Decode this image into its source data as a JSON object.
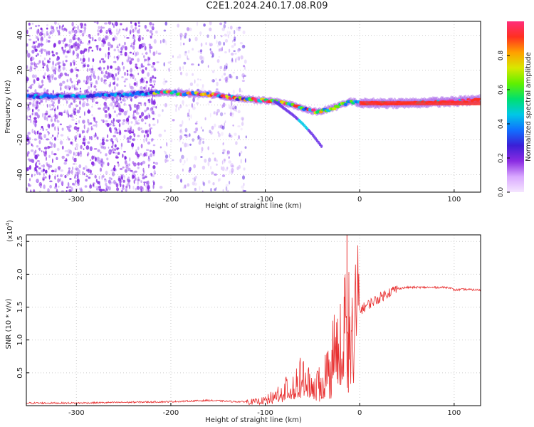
{
  "figure": {
    "title": "C2E1.2024.240.17.08.R09"
  },
  "chart_data": [
    {
      "type": "heatmap",
      "title": "",
      "xlabel": "Height of straight line (km)",
      "ylabel": "Frequency (Hz)",
      "xlim": [
        -353,
        128
      ],
      "ylim": [
        -50,
        48
      ],
      "xticks": [
        -300,
        -200,
        -100,
        0,
        100
      ],
      "yticks": [
        -40,
        -20,
        0,
        20,
        40
      ],
      "grid": true,
      "colorbar": {
        "label": "Normalized spectral amplitude",
        "range": [
          0,
          1
        ],
        "ticks": [
          0.0,
          0.2,
          0.4,
          0.6,
          0.8
        ],
        "colors": [
          "#f5e6ff",
          "#d9a8ff",
          "#8a2be2",
          "#3b1fd6",
          "#1070ff",
          "#00c8e6",
          "#00e070",
          "#60f000",
          "#d8e800",
          "#ffa000",
          "#ff3020",
          "#ff2d7a"
        ]
      },
      "ridge": {
        "note_units": "x in km, frequency in Hz",
        "x": [
          -353,
          -300,
          -250,
          -220,
          -200,
          -160,
          -130,
          -110,
          -90,
          -70,
          -55,
          -45,
          -30,
          -20,
          -10,
          0,
          50,
          100,
          128
        ],
        "y": [
          5,
          5,
          6,
          7,
          7,
          6,
          4,
          3,
          2,
          0,
          -3,
          -4,
          -2,
          0,
          2,
          1,
          1,
          2,
          3
        ]
      },
      "branch": {
        "x": [
          -90,
          -80,
          -70,
          -60,
          -50,
          -40
        ],
        "y": [
          2,
          -2,
          -6,
          -11,
          -17,
          -24
        ]
      },
      "noise_regions": [
        {
          "x": [
            -353,
            -215
          ],
          "density": "high"
        },
        {
          "x": [
            -215,
            -190
          ],
          "density": "low"
        },
        {
          "x": [
            -190,
            -150
          ],
          "density": "medium"
        },
        {
          "x": [
            -150,
            -120
          ],
          "density": "medium"
        }
      ]
    },
    {
      "type": "line",
      "title": "",
      "xlabel": "Height of straight line (km)",
      "ylabel": "SNR (10 * v/v)",
      "exponent_label": "(x10",
      "exponent_power": "4",
      "exponent_close": ")",
      "xlim": [
        -353,
        128
      ],
      "ylim": [
        0,
        2.6
      ],
      "xticks": [
        -300,
        -200,
        -100,
        0,
        100
      ],
      "yticks": [
        0.5,
        1.0,
        1.5,
        2.0,
        2.5
      ],
      "ytick_labels": [
        "0.5",
        "1.0",
        "1.5",
        "2.0",
        "2.5"
      ],
      "grid": true,
      "series": [
        {
          "color": "#e83030",
          "x": [
            -353,
            -300,
            -250,
            -200,
            -160,
            -130,
            -110,
            -100,
            -90,
            -80,
            -70,
            -60,
            -50,
            -40,
            -30,
            -25,
            -20,
            -15,
            -10,
            -5,
            0,
            10,
            20,
            30,
            40,
            50,
            60,
            80,
            95,
            100,
            110,
            128
          ],
          "y": [
            0.04,
            0.04,
            0.05,
            0.06,
            0.08,
            0.06,
            0.06,
            0.08,
            0.15,
            0.25,
            0.35,
            0.45,
            0.3,
            0.35,
            0.7,
            0.95,
            1.05,
            1.2,
            1.2,
            1.35,
            1.45,
            1.55,
            1.63,
            1.72,
            1.78,
            1.8,
            1.8,
            1.8,
            1.8,
            1.76,
            1.77,
            1.76
          ]
        }
      ],
      "spikes": [
        {
          "x": -13.5,
          "y": 2.6
        },
        {
          "x": -16,
          "y": 1.95
        },
        {
          "x": -12,
          "y": 0.2
        }
      ]
    }
  ]
}
